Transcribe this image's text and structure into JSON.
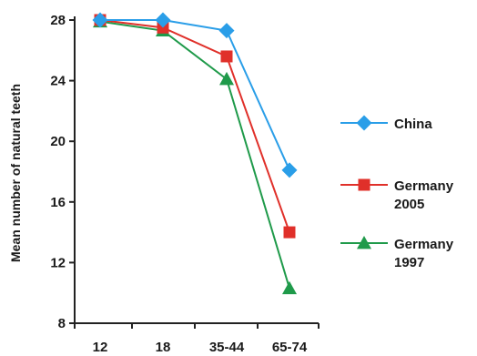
{
  "chart_data": {
    "type": "line",
    "categories": [
      "12",
      "18",
      "35-44",
      "65-74"
    ],
    "ylabel": "Mean number of natural teeth",
    "xlabel": "",
    "ylim": [
      8,
      28
    ],
    "yticks": [
      "8",
      "12",
      "16",
      "20",
      "24",
      "28"
    ],
    "legend_position": "right",
    "grid": false,
    "series": [
      {
        "name": "China",
        "label_lines": [
          "China"
        ],
        "color": "#2a9ee8",
        "marker": "diamond",
        "values": [
          28.0,
          28.0,
          27.3,
          18.1
        ]
      },
      {
        "name": "Germany 2005",
        "label_lines": [
          "Germany",
          "2005"
        ],
        "color": "#e0302a",
        "marker": "square",
        "values": [
          28.0,
          27.5,
          25.6,
          14.0
        ]
      },
      {
        "name": "Germany 1997",
        "label_lines": [
          "Germany",
          "1997"
        ],
        "color": "#1f9a4a",
        "marker": "triangle",
        "values": [
          27.9,
          27.3,
          24.1,
          10.3
        ]
      }
    ]
  }
}
